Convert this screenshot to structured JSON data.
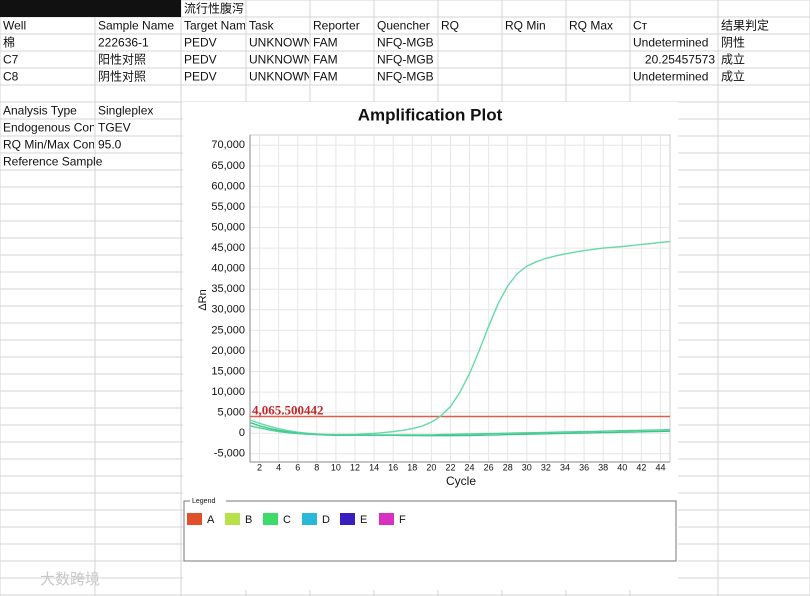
{
  "sheet": {
    "title_cell": "流行性腹泻",
    "columns": [
      "Well",
      "Sample Name",
      "Target Name",
      "Task",
      "Reporter",
      "Quencher",
      "RQ",
      "RQ Min",
      "RQ Max",
      "Cт",
      "结果判定"
    ],
    "rows": [
      [
        "棉",
        "222636-1",
        "PEDV",
        "UNKNOWN",
        "FAM",
        "NFQ-MGB",
        null,
        null,
        null,
        "Undetermined",
        "阴性"
      ],
      [
        "C7",
        "阳性对照",
        "PEDV",
        "UNKNOWN",
        "FAM",
        "NFQ-MGB",
        null,
        null,
        null,
        20.25457573,
        "成立"
      ],
      [
        "C8",
        "阴性对照",
        "PEDV",
        "UNKNOWN",
        "FAM",
        "NFQ-MGB",
        null,
        null,
        null,
        "Undetermined",
        "成立"
      ]
    ],
    "settings": [
      [
        "Analysis Type",
        "Singleplex"
      ],
      [
        "Endogenous Control",
        "TGEV"
      ],
      [
        "RQ Min/Max Confidence",
        "95.0"
      ],
      [
        "Reference Sample"
      ]
    ],
    "watermark": "大数跨境"
  },
  "chart_data": {
    "type": "line",
    "title": "Amplification Plot",
    "x_label": "Cycle",
    "y_label": "ΔRn",
    "x": [
      1,
      2,
      3,
      4,
      5,
      6,
      7,
      8,
      9,
      10,
      11,
      12,
      13,
      14,
      15,
      16,
      17,
      18,
      19,
      20,
      21,
      22,
      23,
      24,
      25,
      26,
      27,
      28,
      29,
      30,
      31,
      32,
      33,
      34,
      35,
      36,
      37,
      38,
      39,
      40,
      41,
      42,
      43,
      44,
      45
    ],
    "series": [
      {
        "color": "#66d9a8",
        "values": [
          3200,
          2400,
          1700,
          1100,
          600,
          250,
          0,
          -200,
          -300,
          -350,
          -350,
          -300,
          -200,
          -50,
          150,
          400,
          700,
          1100,
          1700,
          2700,
          4200,
          6500,
          10000,
          14500,
          20000,
          26000,
          31500,
          35800,
          38800,
          40600,
          41700,
          42500,
          43100,
          43600,
          44000,
          44400,
          44700,
          45000,
          45200,
          45400,
          45600,
          45900,
          46100,
          46400,
          46600
        ]
      },
      {
        "color": "#3cc48e",
        "values": [
          2600,
          1800,
          1200,
          700,
          300,
          0,
          -200,
          -350,
          -450,
          -500,
          -500,
          -500,
          -500,
          -500,
          -500,
          -500,
          -550,
          -550,
          -600,
          -600,
          -600,
          -600,
          -550,
          -550,
          -500,
          -450,
          -400,
          -350,
          -300,
          -250,
          -200,
          -150,
          -100,
          -50,
          0,
          50,
          100,
          150,
          200,
          250,
          300,
          350,
          400,
          450,
          500
        ]
      },
      {
        "color": "#4fcf98",
        "values": [
          1800,
          1300,
          800,
          400,
          100,
          -100,
          -250,
          -350,
          -400,
          -400,
          -400,
          -400,
          -400,
          -400,
          -400,
          -400,
          -400,
          -400,
          -400,
          -400,
          -350,
          -300,
          -250,
          -200,
          -150,
          -100,
          -50,
          0,
          50,
          100,
          150,
          200,
          250,
          300,
          350,
          400,
          450,
          500,
          550,
          600,
          650,
          700,
          750,
          800,
          850
        ]
      }
    ],
    "threshold": {
      "value": 4065.500442,
      "label": "4,065.500442",
      "color": "#e05a4a"
    },
    "xlim": [
      1,
      45
    ],
    "xticks": [
      2,
      4,
      6,
      8,
      10,
      12,
      14,
      16,
      18,
      20,
      22,
      24,
      26,
      28,
      30,
      32,
      34,
      36,
      38,
      40,
      42,
      44
    ],
    "ylim": [
      -7000,
      72500
    ],
    "yticks": [
      {
        "value": -5000,
        "label": "-5,000"
      },
      0,
      {
        "value": 5000,
        "label": "5,000"
      },
      {
        "value": 10000,
        "label": "10,000"
      },
      {
        "value": 15000,
        "label": "15,000"
      },
      {
        "value": 20000,
        "label": "20,000"
      },
      {
        "value": 25000,
        "label": "25,000"
      },
      {
        "value": 30000,
        "label": "30,000"
      },
      {
        "value": 35000,
        "label": "35,000"
      },
      {
        "value": 40000,
        "label": "40,000"
      },
      {
        "value": 45000,
        "label": "45,000"
      },
      {
        "value": 50000,
        "label": "50,000"
      },
      {
        "value": 55000,
        "label": "55,000"
      },
      {
        "value": 60000,
        "label": "60,000"
      },
      {
        "value": 65000,
        "label": "65,000"
      },
      {
        "value": 70000,
        "label": "70,000"
      }
    ],
    "grid": true,
    "legend_title": "Legend",
    "legend": [
      {
        "name": "A",
        "color": "#e0502a"
      },
      {
        "name": "B",
        "color": "#b8e04a"
      },
      {
        "name": "C",
        "color": "#3ddc6a"
      },
      {
        "name": "D",
        "color": "#2ab8d8"
      },
      {
        "name": "E",
        "color": "#3a1fc0"
      },
      {
        "name": "F",
        "color": "#d830c0"
      }
    ]
  }
}
